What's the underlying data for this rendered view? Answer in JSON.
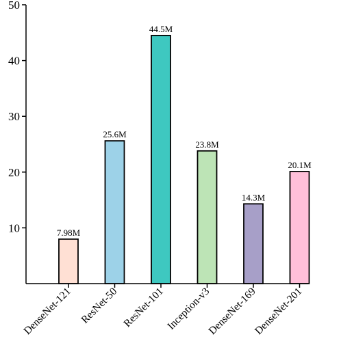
{
  "chart_data": {
    "type": "bar",
    "categories": [
      "DenseNet-121",
      "ResNet-50",
      "ResNet-101",
      "Inception-v3",
      "DenseNet-169",
      "DenseNet-201"
    ],
    "values": [
      7.98,
      25.6,
      44.5,
      23.8,
      14.3,
      20.1
    ],
    "data_labels": [
      "7.98M",
      "25.6M",
      "44.5M",
      "23.8M",
      "14.3M",
      "20.1M"
    ],
    "colors": [
      "#FFE0D4",
      "#9DD2E8",
      "#3EC8C0",
      "#BDE4B6",
      "#A79FC8",
      "#FFBFD9"
    ],
    "title": "",
    "xlabel": "",
    "ylabel": "",
    "ylim": [
      0,
      50
    ],
    "yticks": [
      10,
      20,
      30,
      40,
      50
    ],
    "grid": false,
    "legend": "none"
  }
}
